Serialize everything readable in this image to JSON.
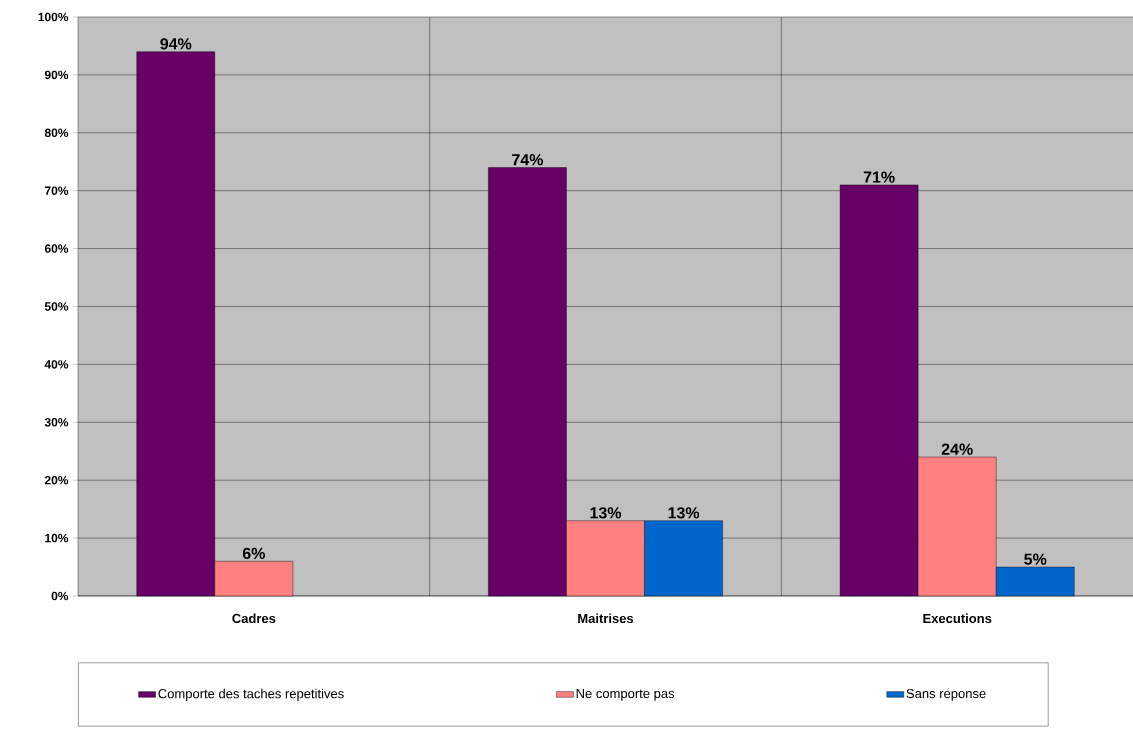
{
  "chart_data": {
    "type": "bar",
    "categories": [
      "Cadres",
      "Maitrises",
      "Executions"
    ],
    "series": [
      {
        "name": "Comporte des taches repetitives",
        "color": "#660066",
        "values": [
          94,
          74,
          71
        ],
        "value_labels": [
          "94%",
          "74%",
          "71%"
        ]
      },
      {
        "name": "Ne comporte pas",
        "color": "#ff8080",
        "values": [
          6,
          13,
          24
        ],
        "value_labels": [
          "6%",
          "13%",
          "24%"
        ]
      },
      {
        "name": "Sans reponse",
        "color": "#0066cc",
        "values": [
          null,
          13,
          5
        ],
        "value_labels": [
          null,
          "13%",
          "5%"
        ]
      }
    ],
    "ylim": [
      0,
      100
    ],
    "yticks": [
      {
        "value": 0,
        "label": "0%"
      },
      {
        "value": 10,
        "label": "10%"
      },
      {
        "value": 20,
        "label": "20%"
      },
      {
        "value": 30,
        "label": "30%"
      },
      {
        "value": 40,
        "label": "40%"
      },
      {
        "value": 50,
        "label": "50%"
      },
      {
        "value": 60,
        "label": "60%"
      },
      {
        "value": 70,
        "label": "70%"
      },
      {
        "value": 80,
        "label": "80%"
      },
      {
        "value": 90,
        "label": "90%"
      },
      {
        "value": 100,
        "label": "100%"
      }
    ],
    "grid": true,
    "legend": "bottom"
  }
}
